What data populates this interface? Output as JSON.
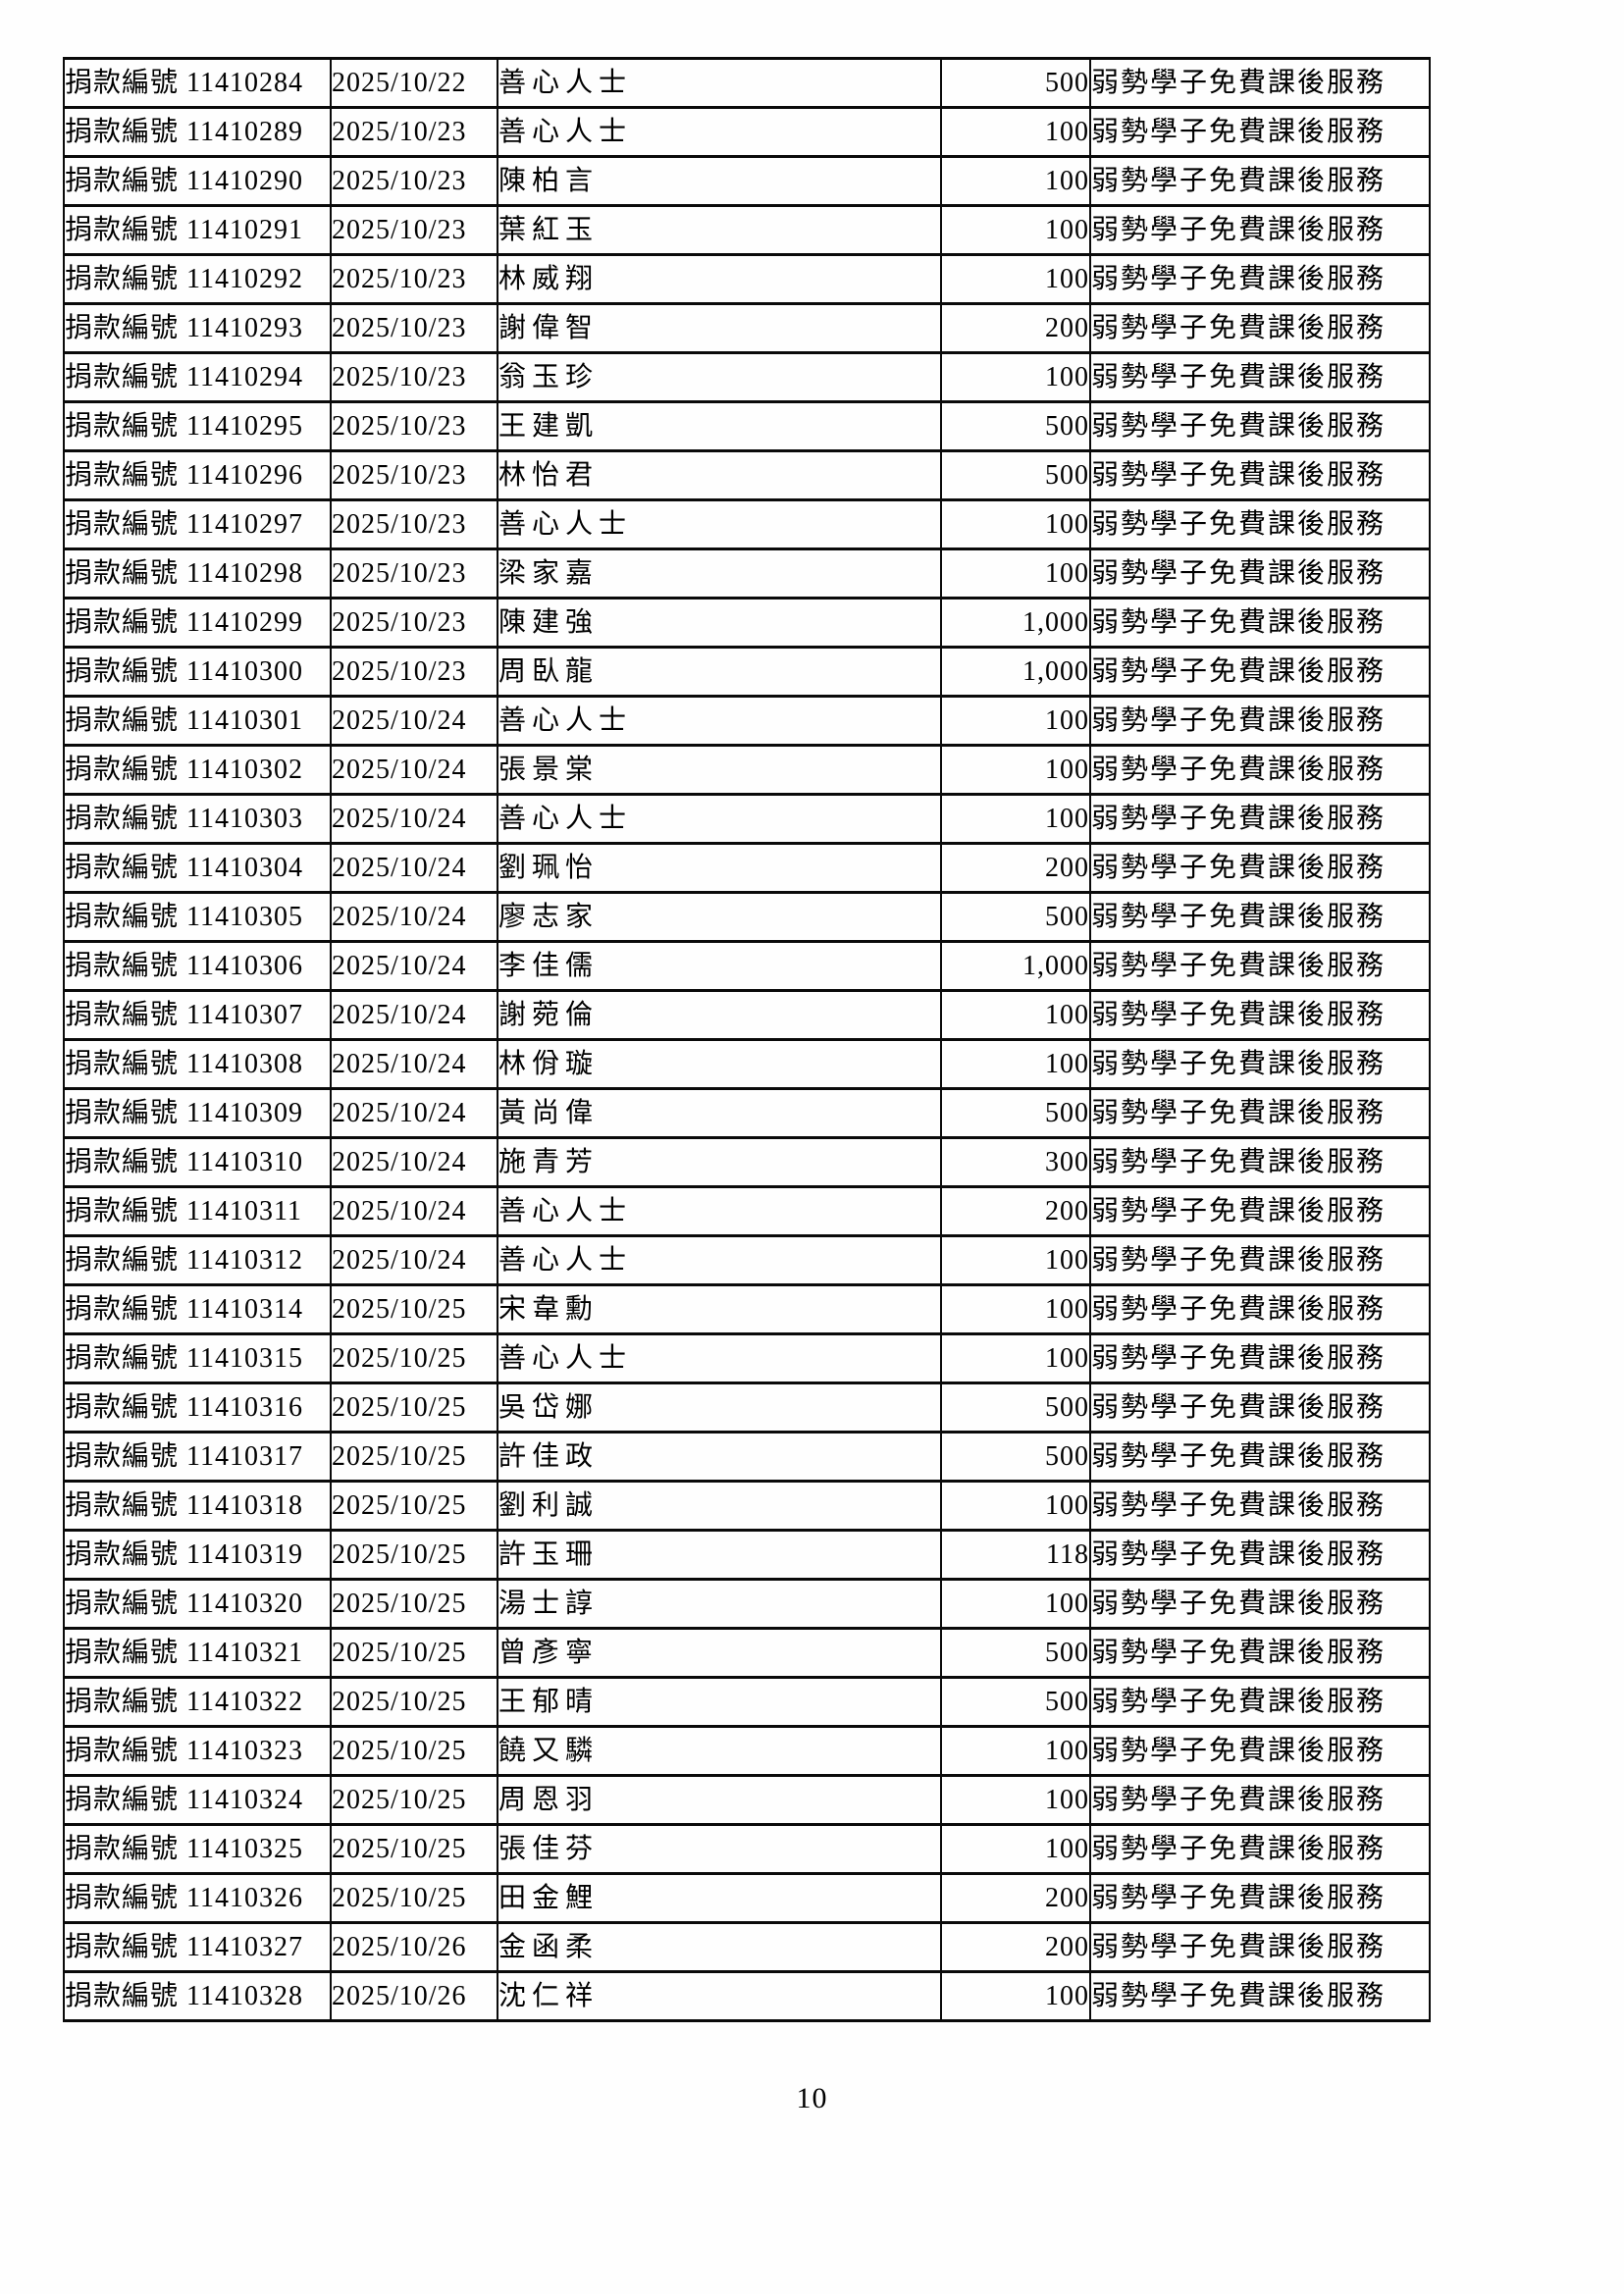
{
  "document": {
    "page_number": "10",
    "table": {
      "row_label_prefix": "捐款編號",
      "purpose": "弱勢學子免費課後服務",
      "columns": [
        "donation_id",
        "date",
        "donor",
        "amount",
        "purpose"
      ],
      "rows": [
        {
          "id": "11410284",
          "date": "2025/10/22",
          "donor": "善心人士",
          "amount": "500"
        },
        {
          "id": "11410289",
          "date": "2025/10/23",
          "donor": "善心人士",
          "amount": "100"
        },
        {
          "id": "11410290",
          "date": "2025/10/23",
          "donor": "陳柏言",
          "amount": "100"
        },
        {
          "id": "11410291",
          "date": "2025/10/23",
          "donor": "葉紅玉",
          "amount": "100"
        },
        {
          "id": "11410292",
          "date": "2025/10/23",
          "donor": "林威翔",
          "amount": "100"
        },
        {
          "id": "11410293",
          "date": "2025/10/23",
          "donor": "謝偉智",
          "amount": "200"
        },
        {
          "id": "11410294",
          "date": "2025/10/23",
          "donor": "翁玉珍",
          "amount": "100"
        },
        {
          "id": "11410295",
          "date": "2025/10/23",
          "donor": "王建凱",
          "amount": "500"
        },
        {
          "id": "11410296",
          "date": "2025/10/23",
          "donor": "林怡君",
          "amount": "500"
        },
        {
          "id": "11410297",
          "date": "2025/10/23",
          "donor": "善心人士",
          "amount": "100"
        },
        {
          "id": "11410298",
          "date": "2025/10/23",
          "donor": "梁家嘉",
          "amount": "100"
        },
        {
          "id": "11410299",
          "date": "2025/10/23",
          "donor": "陳建強",
          "amount": "1,000"
        },
        {
          "id": "11410300",
          "date": "2025/10/23",
          "donor": "周臥龍",
          "amount": "1,000"
        },
        {
          "id": "11410301",
          "date": "2025/10/24",
          "donor": "善心人士",
          "amount": "100"
        },
        {
          "id": "11410302",
          "date": "2025/10/24",
          "donor": "張景棠",
          "amount": "100"
        },
        {
          "id": "11410303",
          "date": "2025/10/24",
          "donor": "善心人士",
          "amount": "100"
        },
        {
          "id": "11410304",
          "date": "2025/10/24",
          "donor": "劉珮怡",
          "amount": "200"
        },
        {
          "id": "11410305",
          "date": "2025/10/24",
          "donor": "廖志家",
          "amount": "500"
        },
        {
          "id": "11410306",
          "date": "2025/10/24",
          "donor": "李佳儒",
          "amount": "1,000"
        },
        {
          "id": "11410307",
          "date": "2025/10/24",
          "donor": "謝菀倫",
          "amount": "100"
        },
        {
          "id": "11410308",
          "date": "2025/10/24",
          "donor": "林佾璇",
          "amount": "100"
        },
        {
          "id": "11410309",
          "date": "2025/10/24",
          "donor": "黃尚偉",
          "amount": "500"
        },
        {
          "id": "11410310",
          "date": "2025/10/24",
          "donor": "施青芳",
          "amount": "300"
        },
        {
          "id": "11410311",
          "date": "2025/10/24",
          "donor": "善心人士",
          "amount": "200"
        },
        {
          "id": "11410312",
          "date": "2025/10/24",
          "donor": "善心人士",
          "amount": "100"
        },
        {
          "id": "11410314",
          "date": "2025/10/25",
          "donor": "宋韋勳",
          "amount": "100"
        },
        {
          "id": "11410315",
          "date": "2025/10/25",
          "donor": "善心人士",
          "amount": "100"
        },
        {
          "id": "11410316",
          "date": "2025/10/25",
          "donor": "吳岱娜",
          "amount": "500"
        },
        {
          "id": "11410317",
          "date": "2025/10/25",
          "donor": "許佳政",
          "amount": "500"
        },
        {
          "id": "11410318",
          "date": "2025/10/25",
          "donor": "劉利誠",
          "amount": "100"
        },
        {
          "id": "11410319",
          "date": "2025/10/25",
          "donor": "許玉珊",
          "amount": "118"
        },
        {
          "id": "11410320",
          "date": "2025/10/25",
          "donor": "湯士諄",
          "amount": "100"
        },
        {
          "id": "11410321",
          "date": "2025/10/25",
          "donor": "曾彥寧",
          "amount": "500"
        },
        {
          "id": "11410322",
          "date": "2025/10/25",
          "donor": "王郁晴",
          "amount": "500"
        },
        {
          "id": "11410323",
          "date": "2025/10/25",
          "donor": "饒又驎",
          "amount": "100"
        },
        {
          "id": "11410324",
          "date": "2025/10/25",
          "donor": "周恩羽",
          "amount": "100"
        },
        {
          "id": "11410325",
          "date": "2025/10/25",
          "donor": "張佳芬",
          "amount": "100"
        },
        {
          "id": "11410326",
          "date": "2025/10/25",
          "donor": "田金鯉",
          "amount": "200"
        },
        {
          "id": "11410327",
          "date": "2025/10/26",
          "donor": "金函柔",
          "amount": "200"
        },
        {
          "id": "11410328",
          "date": "2025/10/26",
          "donor": "沈仁祥",
          "amount": "100"
        }
      ]
    }
  }
}
